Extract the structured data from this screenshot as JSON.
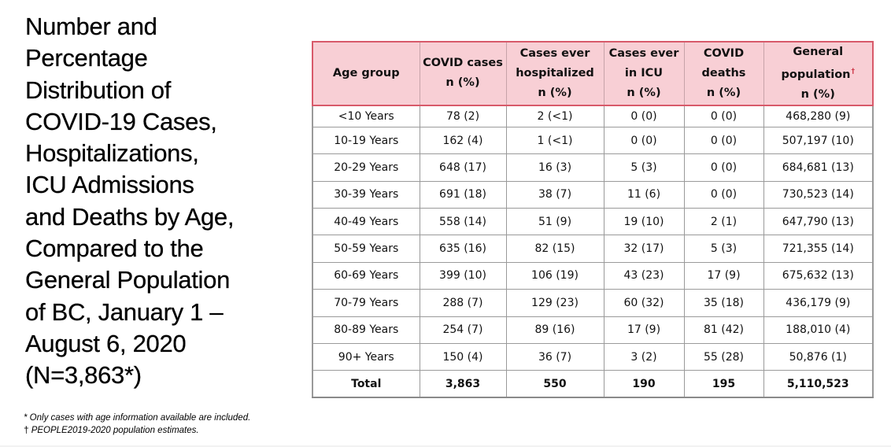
{
  "title_lines": [
    "Number and",
    "Percentage",
    "Distribution of",
    "COVID-19 Cases,",
    "Hospitalizations,",
    "ICU Admissions",
    "and Deaths by Age,",
    "Compared to the",
    "General Population",
    "of BC, January 1  –",
    "August 6, 2020",
    "(N=3,863*)"
  ],
  "table": {
    "headers": {
      "age_group": "Age group",
      "covid_cases": [
        "COVID cases",
        "n (%)"
      ],
      "hospitalized": [
        "Cases ever",
        "hospitalized",
        "n (%)"
      ],
      "icu": [
        "Cases ever",
        "in ICU",
        "n (%)"
      ],
      "deaths": [
        "COVID",
        "deaths",
        "n (%)"
      ],
      "population": [
        "General",
        "population",
        "n (%)"
      ],
      "population_mark": "†"
    },
    "rows": [
      [
        "<10 Years",
        "78 (2)",
        "2 (<1)",
        "0 (0)",
        "0 (0)",
        "468,280 (9)"
      ],
      [
        "10-19 Years",
        "162 (4)",
        "1 (<1)",
        "0 (0)",
        "0 (0)",
        "507,197 (10)"
      ],
      [
        "20-29 Years",
        "648 (17)",
        "16 (3)",
        "5 (3)",
        "0 (0)",
        "684,681 (13)"
      ],
      [
        "30-39 Years",
        "691 (18)",
        "38 (7)",
        "11 (6)",
        "0 (0)",
        "730,523 (14)"
      ],
      [
        "40-49 Years",
        "558 (14)",
        "51 (9)",
        "19 (10)",
        "2 (1)",
        "647,790 (13)"
      ],
      [
        "50-59 Years",
        "635 (16)",
        "82 (15)",
        "32 (17)",
        "5 (3)",
        "721,355 (14)"
      ],
      [
        "60-69 Years",
        "399 (10)",
        "106 (19)",
        "43 (23)",
        "17 (9)",
        "675,632 (13)"
      ],
      [
        "70-79 Years",
        "288 (7)",
        "129 (23)",
        "60 (32)",
        "35 (18)",
        "436,179 (9)"
      ],
      [
        "80-89 Years",
        "254 (7)",
        "89 (16)",
        "17 (9)",
        "81 (42)",
        "188,010 (4)"
      ],
      [
        "90+ Years",
        "150 (4)",
        "36 (7)",
        "3 (2)",
        "55 (28)",
        "50,876 (1)"
      ]
    ],
    "total": [
      "Total",
      "3,863",
      "550",
      "190",
      "195",
      "5,110,523"
    ]
  },
  "footnotes": {
    "note1": "* Only cases with age information available are included.",
    "note2_symbol": "†",
    "note2": "PEOPLE2019-2020 population estimates."
  },
  "colors": {
    "header_bg": "#f8cfd5",
    "header_border": "#d85a6a"
  }
}
